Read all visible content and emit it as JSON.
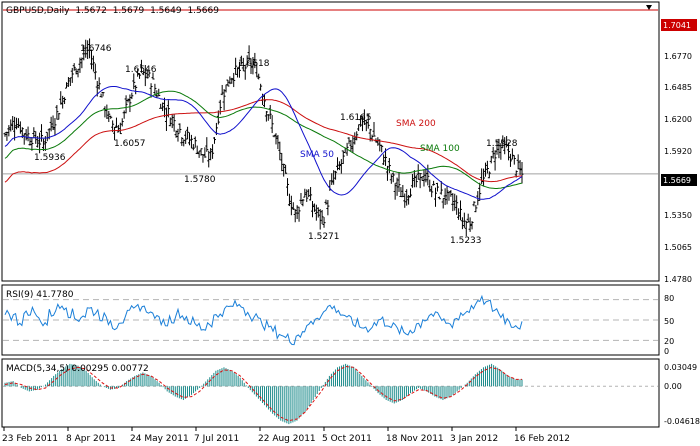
{
  "header": {
    "symbol": "GBPUSD,Daily",
    "open": "1.5672",
    "high": "1.5679",
    "low": "1.5649",
    "close": "1.5669"
  },
  "colors": {
    "background": "#ffffff",
    "grid": "#c8c8c8",
    "sma50": "#1010cc",
    "sma100": "#0a7a0a",
    "sma200": "#cc1010",
    "rsi": "#1a7fd8",
    "macd_hist": "#1a8a8a",
    "macd_signal": "#dd1010",
    "resistance": "#cc0000"
  },
  "chart_data": [
    {
      "type": "candlestick",
      "title": "GBPUSD,Daily",
      "y_axis_ticks": [
        "1.6770",
        "1.6485",
        "1.6200",
        "1.5920",
        "1.5635",
        "1.5350",
        "1.5065",
        "1.4780"
      ],
      "ylim": [
        1.478,
        1.71
      ],
      "resistance_level": "1.7041",
      "current_price": "1.5669",
      "annotations": [
        {
          "label": "1.6746",
          "value": 1.6746
        },
        {
          "label": "1.6546",
          "value": 1.6546
        },
        {
          "label": "1.5936",
          "value": 1.5936
        },
        {
          "label": "1.6057",
          "value": 1.6057
        },
        {
          "label": "1.5780",
          "value": 1.578
        },
        {
          "label": "1.6618",
          "value": 1.6618
        },
        {
          "label": "1.5271",
          "value": 1.5271
        },
        {
          "label": "1.6165",
          "value": 1.6165
        },
        {
          "label": "1.5928",
          "value": 1.5928
        },
        {
          "label": "1.5233",
          "value": 1.5233
        }
      ],
      "series_labels": {
        "sma200": "SMA 200",
        "sma100": "SMA 100",
        "sma50": "SMA 50"
      },
      "price_path": [
        [
          0,
          1.6
        ],
        [
          6,
          1.612
        ],
        [
          12,
          1.6
        ],
        [
          18,
          1.596
        ],
        [
          22,
          1.593
        ],
        [
          30,
          1.618
        ],
        [
          38,
          1.65
        ],
        [
          44,
          1.663
        ],
        [
          48,
          1.672
        ],
        [
          54,
          1.64
        ],
        [
          60,
          1.61
        ],
        [
          66,
          1.605
        ],
        [
          72,
          1.633
        ],
        [
          78,
          1.652
        ],
        [
          84,
          1.645
        ],
        [
          90,
          1.625
        ],
        [
          96,
          1.612
        ],
        [
          102,
          1.6
        ],
        [
          108,
          1.593
        ],
        [
          114,
          1.582
        ],
        [
          118,
          1.581
        ],
        [
          124,
          1.632
        ],
        [
          130,
          1.65
        ],
        [
          136,
          1.655
        ],
        [
          140,
          1.66
        ],
        [
          144,
          1.655
        ],
        [
          150,
          1.622
        ],
        [
          156,
          1.592
        ],
        [
          162,
          1.553
        ],
        [
          166,
          1.533
        ],
        [
          172,
          1.552
        ],
        [
          178,
          1.535
        ],
        [
          182,
          1.528
        ],
        [
          188,
          1.562
        ],
        [
          194,
          1.58
        ],
        [
          200,
          1.598
        ],
        [
          204,
          1.612
        ],
        [
          210,
          1.602
        ],
        [
          216,
          1.585
        ],
        [
          222,
          1.562
        ],
        [
          228,
          1.548
        ],
        [
          234,
          1.558
        ],
        [
          240,
          1.566
        ],
        [
          246,
          1.552
        ],
        [
          252,
          1.548
        ],
        [
          258,
          1.542
        ],
        [
          262,
          1.528
        ],
        [
          266,
          1.525
        ],
        [
          272,
          1.555
        ],
        [
          278,
          1.575
        ],
        [
          282,
          1.59
        ],
        [
          288,
          1.587
        ],
        [
          292,
          1.575
        ],
        [
          296,
          1.566
        ]
      ]
    },
    {
      "type": "line",
      "title": "RSI(9) 41.7780",
      "y_axis_ticks": [
        "80",
        "50",
        "20",
        "0"
      ],
      "ylim": [
        0,
        100
      ],
      "values": [
        62,
        55,
        48,
        58,
        64,
        52,
        45,
        60,
        68,
        72,
        60,
        52,
        57,
        66,
        62,
        55,
        48,
        42,
        50,
        58,
        64,
        70,
        66,
        58,
        50,
        46,
        52,
        60,
        55,
        48,
        42,
        38,
        46,
        55,
        62,
        68,
        72,
        70,
        62,
        55,
        48,
        42,
        35,
        30,
        24,
        20,
        28,
        36,
        45,
        55,
        62,
        70,
        66,
        58,
        50,
        45,
        40,
        38,
        44,
        50,
        46,
        40,
        34,
        30,
        36,
        44,
        52,
        58,
        55,
        48,
        44,
        52,
        60,
        66,
        72,
        78,
        74,
        66,
        58,
        50,
        44,
        42
      ]
    },
    {
      "type": "bar",
      "title": "MACD(5,34,5) 0.00295 0.00772",
      "y_axis_ticks": [
        "0.03049",
        "0.00",
        "-0.04618"
      ],
      "ylim": [
        -0.04618,
        0.03049
      ],
      "histogram": [
        0.004,
        0.006,
        -0.002,
        -0.006,
        -0.004,
        0.002,
        0.012,
        0.02,
        0.026,
        0.024,
        0.018,
        0.008,
        0.0,
        -0.004,
        -0.002,
        0.006,
        0.012,
        0.016,
        0.012,
        0.004,
        -0.006,
        -0.012,
        -0.016,
        -0.01,
        -0.002,
        0.008,
        0.018,
        0.022,
        0.018,
        0.01,
        -0.002,
        -0.012,
        -0.022,
        -0.032,
        -0.04,
        -0.044,
        -0.04,
        -0.03,
        -0.016,
        -0.002,
        0.012,
        0.022,
        0.026,
        0.022,
        0.012,
        0.002,
        -0.008,
        -0.016,
        -0.02,
        -0.016,
        -0.008,
        -0.002,
        -0.006,
        -0.012,
        -0.016,
        -0.012,
        -0.004,
        0.004,
        0.014,
        0.022,
        0.026,
        0.02,
        0.012,
        0.008
      ],
      "signal": [
        0.002,
        0.004,
        0.002,
        -0.002,
        -0.004,
        -0.002,
        0.006,
        0.014,
        0.02,
        0.022,
        0.02,
        0.012,
        0.004,
        -0.002,
        -0.002,
        0.004,
        0.01,
        0.014,
        0.012,
        0.006,
        -0.002,
        -0.008,
        -0.013,
        -0.012,
        -0.006,
        0.004,
        0.013,
        0.019,
        0.018,
        0.012,
        0.002,
        -0.008,
        -0.018,
        -0.028,
        -0.036,
        -0.04,
        -0.038,
        -0.03,
        -0.018,
        -0.006,
        0.008,
        0.018,
        0.023,
        0.022,
        0.014,
        0.004,
        -0.005,
        -0.012,
        -0.017,
        -0.015,
        -0.009,
        -0.004,
        -0.005,
        -0.01,
        -0.014,
        -0.012,
        -0.006,
        0.002,
        0.011,
        0.018,
        0.022,
        0.019,
        0.012,
        0.008
      ]
    }
  ],
  "x_axis": {
    "labels": [
      "23 Feb 2011",
      "8 Apr 2011",
      "24 May 2011",
      "7 Jul 2011",
      "22 Aug 2011",
      "5 Oct 2011",
      "18 Nov 2011",
      "3 Jan 2012",
      "16 Feb 2012"
    ]
  }
}
